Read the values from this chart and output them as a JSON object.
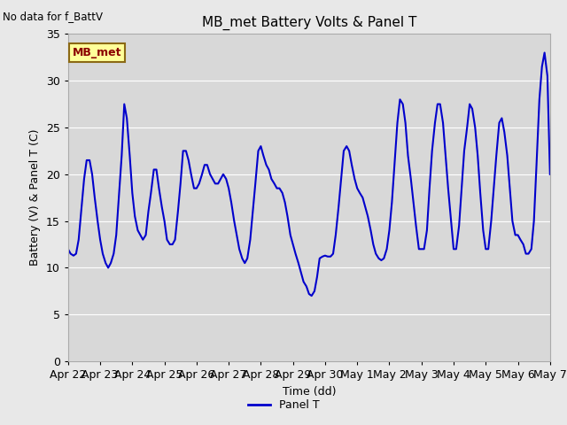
{
  "title": "MB_met Battery Volts & Panel T",
  "no_data_text": "No data for f_BattV",
  "ylabel": "Battery (V) & Panel T (C)",
  "xlabel": "Time (dd)",
  "legend_label": "Panel T",
  "legend_box_label": "MB_met",
  "ylim": [
    0,
    35
  ],
  "xlim": [
    0,
    15
  ],
  "line_color": "#0000cc",
  "fig_facecolor": "#e8e8e8",
  "ax_facecolor": "#d8d8d8",
  "grid_color": "#ffffff",
  "xtick_labels": [
    "Apr 22",
    "Apr 23",
    "Apr 24",
    "Apr 25",
    "Apr 26",
    "Apr 27",
    "Apr 28",
    "Apr 29",
    "Apr 30",
    "May 1",
    "May 2",
    "May 3",
    "May 4",
    "May 5",
    "May 6",
    "May 7"
  ],
  "xtick_positions": [
    0,
    1,
    2,
    3,
    4,
    5,
    6,
    7,
    8,
    9,
    10,
    11,
    12,
    13,
    14,
    15
  ],
  "ytick_positions": [
    0,
    5,
    10,
    15,
    20,
    25,
    30,
    35
  ],
  "panel_t_x": [
    0.0,
    0.08,
    0.17,
    0.25,
    0.33,
    0.42,
    0.5,
    0.58,
    0.67,
    0.75,
    0.83,
    0.92,
    1.0,
    1.08,
    1.17,
    1.25,
    1.33,
    1.42,
    1.5,
    1.58,
    1.67,
    1.75,
    1.83,
    1.92,
    2.0,
    2.08,
    2.17,
    2.25,
    2.33,
    2.42,
    2.5,
    2.58,
    2.67,
    2.75,
    2.83,
    2.92,
    3.0,
    3.08,
    3.17,
    3.25,
    3.33,
    3.42,
    3.5,
    3.58,
    3.67,
    3.75,
    3.83,
    3.92,
    4.0,
    4.08,
    4.17,
    4.25,
    4.33,
    4.42,
    4.5,
    4.58,
    4.67,
    4.75,
    4.83,
    4.92,
    5.0,
    5.08,
    5.17,
    5.25,
    5.33,
    5.42,
    5.5,
    5.58,
    5.67,
    5.75,
    5.83,
    5.92,
    6.0,
    6.08,
    6.17,
    6.25,
    6.33,
    6.42,
    6.5,
    6.58,
    6.67,
    6.75,
    6.83,
    6.92,
    7.0,
    7.08,
    7.17,
    7.25,
    7.33,
    7.42,
    7.5,
    7.58,
    7.67,
    7.75,
    7.83,
    7.92,
    8.0,
    8.08,
    8.17,
    8.25,
    8.33,
    8.42,
    8.5,
    8.58,
    8.67,
    8.75,
    8.83,
    8.92,
    9.0,
    9.08,
    9.17,
    9.25,
    9.33,
    9.42,
    9.5,
    9.58,
    9.67,
    9.75,
    9.83,
    9.92,
    10.0,
    10.08,
    10.17,
    10.25,
    10.33,
    10.42,
    10.5,
    10.58,
    10.67,
    10.75,
    10.83,
    10.92,
    11.0,
    11.08,
    11.17,
    11.25,
    11.33,
    11.42,
    11.5,
    11.58,
    11.67,
    11.75,
    11.83,
    11.92,
    12.0,
    12.08,
    12.17,
    12.25,
    12.33,
    12.42,
    12.5,
    12.58,
    12.67,
    12.75,
    12.83,
    12.92,
    13.0,
    13.08,
    13.17,
    13.25,
    13.33,
    13.42,
    13.5,
    13.58,
    13.67,
    13.75,
    13.83,
    13.92,
    14.0,
    14.08,
    14.17,
    14.25,
    14.33,
    14.42,
    14.5,
    14.58,
    14.67,
    14.75,
    14.83,
    14.92,
    15.0
  ],
  "panel_t_y": [
    12.0,
    11.5,
    11.3,
    11.5,
    13.0,
    16.5,
    19.5,
    21.5,
    21.5,
    20.0,
    17.5,
    15.0,
    13.0,
    11.5,
    10.5,
    10.0,
    10.5,
    11.5,
    13.5,
    17.5,
    22.0,
    27.5,
    26.0,
    22.0,
    18.0,
    15.5,
    14.0,
    13.5,
    13.0,
    13.5,
    16.0,
    18.0,
    20.5,
    20.5,
    18.5,
    16.5,
    15.0,
    13.0,
    12.5,
    12.5,
    13.0,
    16.0,
    19.0,
    22.5,
    22.5,
    21.5,
    20.0,
    18.5,
    18.5,
    19.0,
    20.0,
    21.0,
    21.0,
    20.0,
    19.5,
    19.0,
    19.0,
    19.5,
    20.0,
    19.5,
    18.5,
    17.0,
    15.0,
    13.5,
    12.0,
    11.0,
    10.5,
    11.0,
    13.0,
    16.0,
    19.0,
    22.5,
    23.0,
    22.0,
    21.0,
    20.5,
    19.5,
    19.0,
    18.5,
    18.5,
    18.0,
    17.0,
    15.5,
    13.5,
    12.5,
    11.5,
    10.5,
    9.5,
    8.5,
    8.0,
    7.2,
    7.0,
    7.5,
    9.0,
    11.0,
    11.2,
    11.3,
    11.2,
    11.2,
    11.5,
    13.5,
    16.5,
    19.5,
    22.5,
    23.0,
    22.5,
    21.0,
    19.5,
    18.5,
    18.0,
    17.5,
    16.5,
    15.5,
    14.0,
    12.5,
    11.5,
    11.0,
    10.8,
    11.0,
    12.0,
    14.0,
    17.0,
    21.5,
    25.5,
    28.0,
    27.5,
    25.5,
    22.0,
    19.5,
    17.0,
    14.5,
    12.0,
    12.0,
    12.0,
    14.0,
    18.5,
    22.5,
    25.5,
    27.5,
    27.5,
    25.5,
    22.0,
    18.5,
    15.0,
    12.0,
    12.0,
    14.5,
    18.5,
    22.5,
    25.0,
    27.5,
    27.0,
    25.0,
    22.0,
    18.0,
    14.0,
    12.0,
    12.0,
    15.0,
    18.5,
    22.0,
    25.5,
    26.0,
    24.5,
    22.0,
    18.5,
    15.0,
    13.5,
    13.5,
    13.0,
    12.5,
    11.5,
    11.5,
    12.0,
    15.0,
    21.0,
    28.0,
    31.5,
    33.0,
    30.5,
    20.0
  ]
}
